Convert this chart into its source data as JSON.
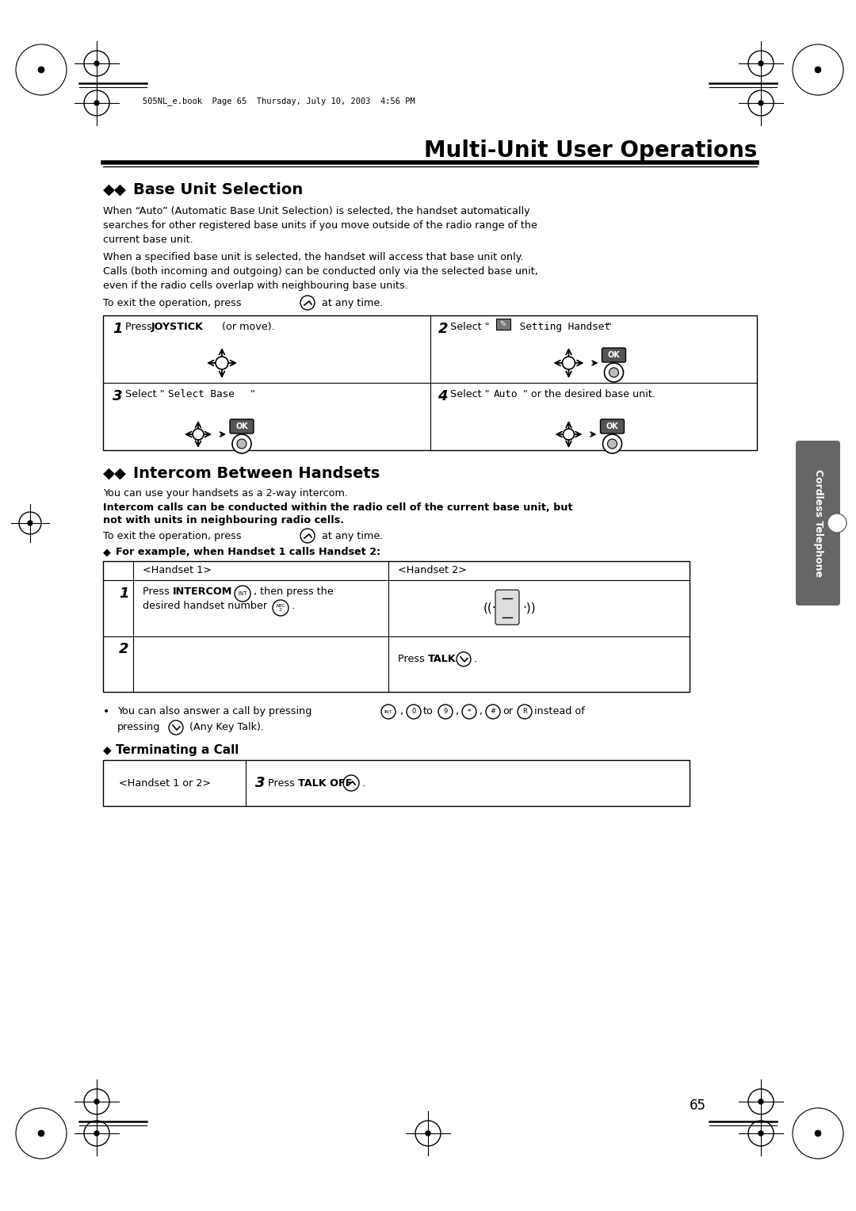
{
  "page_bg": "#ffffff",
  "page_number": "65",
  "header_text": "505NL_e.book  Page 65  Thursday, July 10, 2003  4:56 PM",
  "title": "Multi-Unit User Operations",
  "section1_diamonds": "◆◆",
  "section1_title": "Base Unit Selection",
  "section1_body1": "When “Auto” (Automatic Base Unit Selection) is selected, the handset automatically\nsearches for other registered base units if you move outside of the radio range of the\ncurrent base unit.",
  "section1_body2": "When a specified base unit is selected, the handset will access that base unit only.\nCalls (both incoming and outgoing) can be conducted only via the selected base unit,\neven if the radio cells overlap with neighbouring base units.",
  "section2_diamonds": "◆◆",
  "section2_title": "Intercom Between Handsets",
  "section2_body1": "You can use your handsets as a 2-way intercom.",
  "section2_body2_bold": "Intercom calls can be conducted within the radio cell of the current base unit, but\nnot with units in neighbouring radio cells.",
  "sidebar_text": "Cordless Telephone",
  "page_number_str": "65"
}
